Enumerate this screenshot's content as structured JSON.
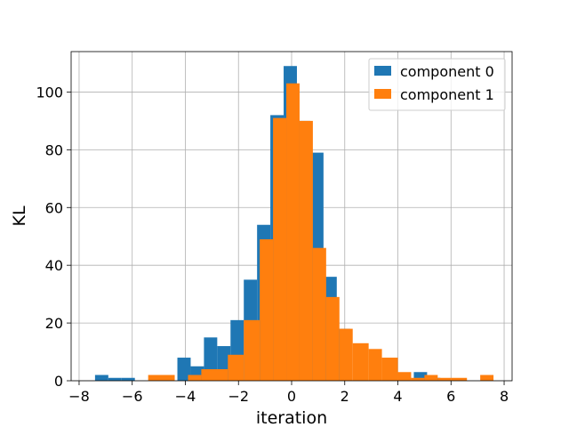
{
  "chart_data": {
    "type": "bar",
    "subtype": "histogram",
    "xlabel": "iteration",
    "ylabel": "KL",
    "xlim": [
      -8.3,
      8.3
    ],
    "ylim": [
      0,
      114
    ],
    "grid": true,
    "legend_position": "top-right",
    "xticks": [
      -8,
      -6,
      -4,
      -2,
      0,
      2,
      4,
      6,
      8
    ],
    "xtick_labels": [
      "−8",
      "−6",
      "−4",
      "−2",
      "0",
      "2",
      "4",
      "6",
      "8"
    ],
    "yticks": [
      0,
      20,
      40,
      60,
      80,
      100
    ],
    "ytick_labels": [
      "0",
      "20",
      "40",
      "60",
      "80",
      "100"
    ],
    "series": [
      {
        "name": "component 0",
        "color": "#1f77b4",
        "bins": [
          {
            "x0": -7.4,
            "x1": -6.9,
            "count": 2
          },
          {
            "x0": -6.9,
            "x1": -6.4,
            "count": 1
          },
          {
            "x0": -6.4,
            "x1": -5.9,
            "count": 1
          },
          {
            "x0": -4.3,
            "x1": -3.8,
            "count": 8
          },
          {
            "x0": -3.8,
            "x1": -3.3,
            "count": 5
          },
          {
            "x0": -3.3,
            "x1": -2.8,
            "count": 15
          },
          {
            "x0": -2.8,
            "x1": -2.3,
            "count": 12
          },
          {
            "x0": -2.3,
            "x1": -1.8,
            "count": 21
          },
          {
            "x0": -1.8,
            "x1": -1.3,
            "count": 35
          },
          {
            "x0": -1.3,
            "x1": -0.8,
            "count": 54
          },
          {
            "x0": -0.8,
            "x1": -0.3,
            "count": 92
          },
          {
            "x0": -0.3,
            "x1": 0.2,
            "count": 109
          },
          {
            "x0": 0.2,
            "x1": 0.7,
            "count": 90
          },
          {
            "x0": 0.7,
            "x1": 1.2,
            "count": 79
          },
          {
            "x0": 1.2,
            "x1": 1.7,
            "count": 36
          },
          {
            "x0": 1.7,
            "x1": 2.2,
            "count": 18
          },
          {
            "x0": 4.6,
            "x1": 5.1,
            "count": 3
          },
          {
            "x0": 5.1,
            "x1": 5.6,
            "count": 1
          }
        ]
      },
      {
        "name": "component 1",
        "color": "#ff7f0e",
        "bins": [
          {
            "x0": -5.4,
            "x1": -4.4,
            "count": 2
          },
          {
            "x0": -3.9,
            "x1": -3.4,
            "count": 2
          },
          {
            "x0": -3.4,
            "x1": -2.4,
            "count": 4
          },
          {
            "x0": -2.4,
            "x1": -1.8,
            "count": 9
          },
          {
            "x0": -1.8,
            "x1": -1.2,
            "count": 21
          },
          {
            "x0": -1.2,
            "x1": -0.7,
            "count": 49
          },
          {
            "x0": -0.7,
            "x1": -0.2,
            "count": 91
          },
          {
            "x0": -0.2,
            "x1": 0.3,
            "count": 103
          },
          {
            "x0": 0.3,
            "x1": 0.8,
            "count": 90
          },
          {
            "x0": 0.8,
            "x1": 1.3,
            "count": 46
          },
          {
            "x0": 1.3,
            "x1": 1.8,
            "count": 29
          },
          {
            "x0": 1.8,
            "x1": 2.3,
            "count": 18
          },
          {
            "x0": 2.3,
            "x1": 2.9,
            "count": 13
          },
          {
            "x0": 2.9,
            "x1": 3.4,
            "count": 11
          },
          {
            "x0": 3.4,
            "x1": 4.0,
            "count": 8
          },
          {
            "x0": 4.0,
            "x1": 4.5,
            "count": 3
          },
          {
            "x0": 4.5,
            "x1": 5.0,
            "count": 1
          },
          {
            "x0": 5.0,
            "x1": 5.5,
            "count": 2
          },
          {
            "x0": 5.5,
            "x1": 6.0,
            "count": 1
          },
          {
            "x0": 6.0,
            "x1": 6.6,
            "count": 1
          },
          {
            "x0": 7.1,
            "x1": 7.6,
            "count": 2
          }
        ]
      }
    ]
  }
}
